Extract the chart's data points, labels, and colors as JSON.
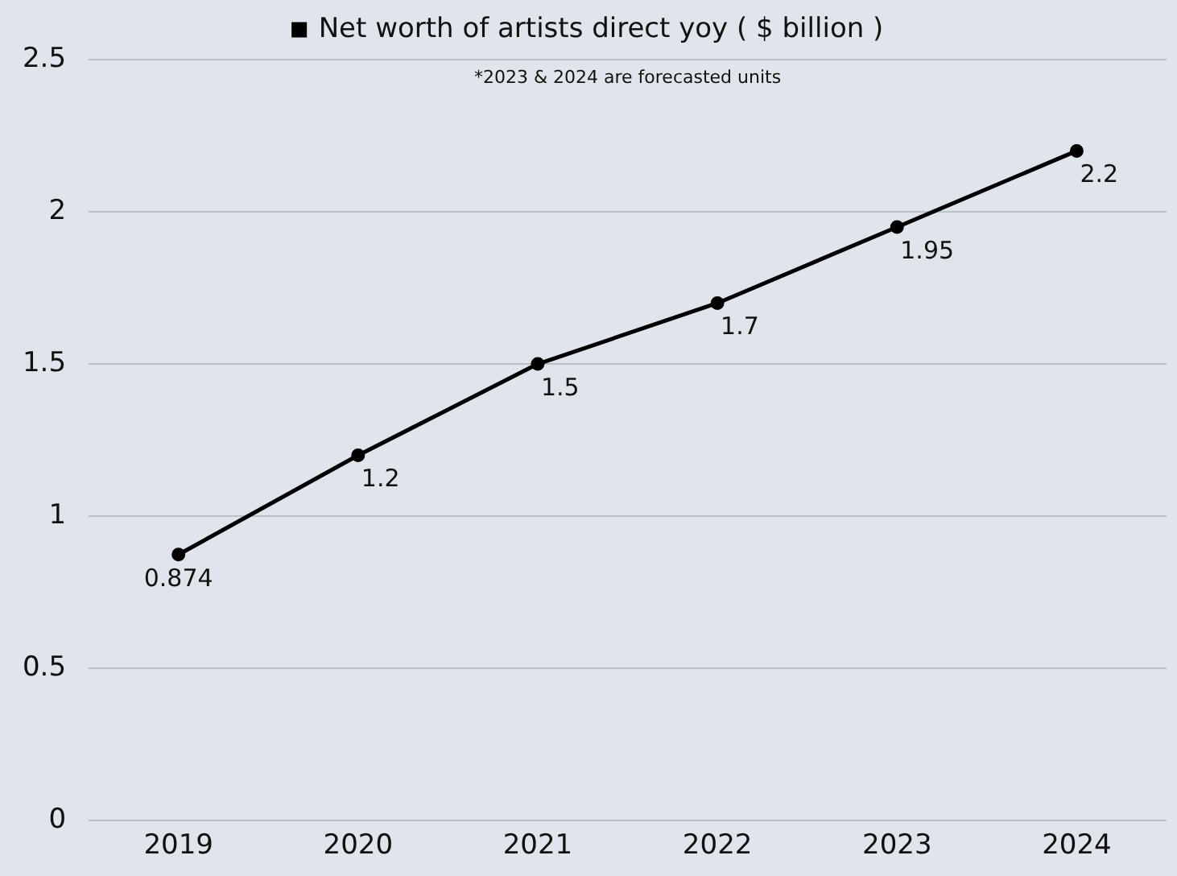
{
  "chart_data": {
    "type": "line",
    "categories": [
      "2019",
      "2020",
      "2021",
      "2022",
      "2023",
      "2024"
    ],
    "series": [
      {
        "name": "Net worth of artists direct yoy ( $ billion )",
        "color": "#000000",
        "values": [
          0.874,
          1.2,
          1.5,
          1.7,
          1.95,
          2.2
        ]
      }
    ],
    "ylim": [
      0,
      2.5
    ],
    "yticks": [
      0,
      0.5,
      1,
      1.5,
      2,
      2.5
    ],
    "grid": "y",
    "legend": "top",
    "marker": "circle",
    "line_style": "solid",
    "data_labels": true,
    "annotations": [
      "*2023 & 2024 are forecasted units"
    ]
  }
}
